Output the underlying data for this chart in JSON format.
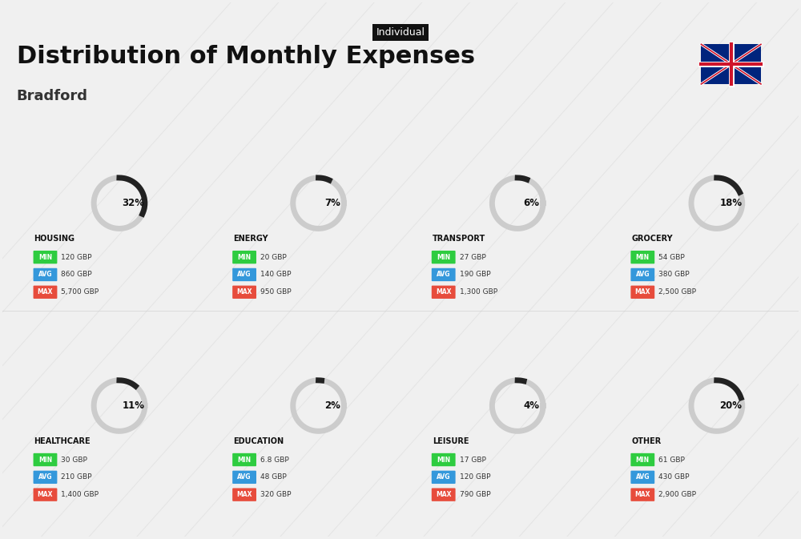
{
  "title": "Distribution of Monthly Expenses",
  "subtitle": "Bradford",
  "tag": "Individual",
  "bg_color": "#f0f0f0",
  "categories": [
    {
      "name": "HOUSING",
      "pct": 32,
      "min_val": "120 GBP",
      "avg_val": "860 GBP",
      "max_val": "5,700 GBP",
      "row": 0,
      "col": 0
    },
    {
      "name": "ENERGY",
      "pct": 7,
      "min_val": "20 GBP",
      "avg_val": "140 GBP",
      "max_val": "950 GBP",
      "row": 0,
      "col": 1
    },
    {
      "name": "TRANSPORT",
      "pct": 6,
      "min_val": "27 GBP",
      "avg_val": "190 GBP",
      "max_val": "1,300 GBP",
      "row": 0,
      "col": 2
    },
    {
      "name": "GROCERY",
      "pct": 18,
      "min_val": "54 GBP",
      "avg_val": "380 GBP",
      "max_val": "2,500 GBP",
      "row": 0,
      "col": 3
    },
    {
      "name": "HEALTHCARE",
      "pct": 11,
      "min_val": "30 GBP",
      "avg_val": "210 GBP",
      "max_val": "1,400 GBP",
      "row": 1,
      "col": 0
    },
    {
      "name": "EDUCATION",
      "pct": 2,
      "min_val": "6.8 GBP",
      "avg_val": "48 GBP",
      "max_val": "320 GBP",
      "row": 1,
      "col": 1
    },
    {
      "name": "LEISURE",
      "pct": 4,
      "min_val": "17 GBP",
      "avg_val": "120 GBP",
      "max_val": "790 GBP",
      "row": 1,
      "col": 2
    },
    {
      "name": "OTHER",
      "pct": 20,
      "min_val": "61 GBP",
      "avg_val": "430 GBP",
      "max_val": "2,900 GBP",
      "row": 1,
      "col": 3
    }
  ],
  "min_color": "#2ecc40",
  "avg_color": "#3498db",
  "max_color": "#e74c3c",
  "arc_color": "#222222",
  "arc_bg_color": "#cccccc",
  "label_color": "#111111",
  "tag_bg": "#111111",
  "tag_fg": "#ffffff"
}
